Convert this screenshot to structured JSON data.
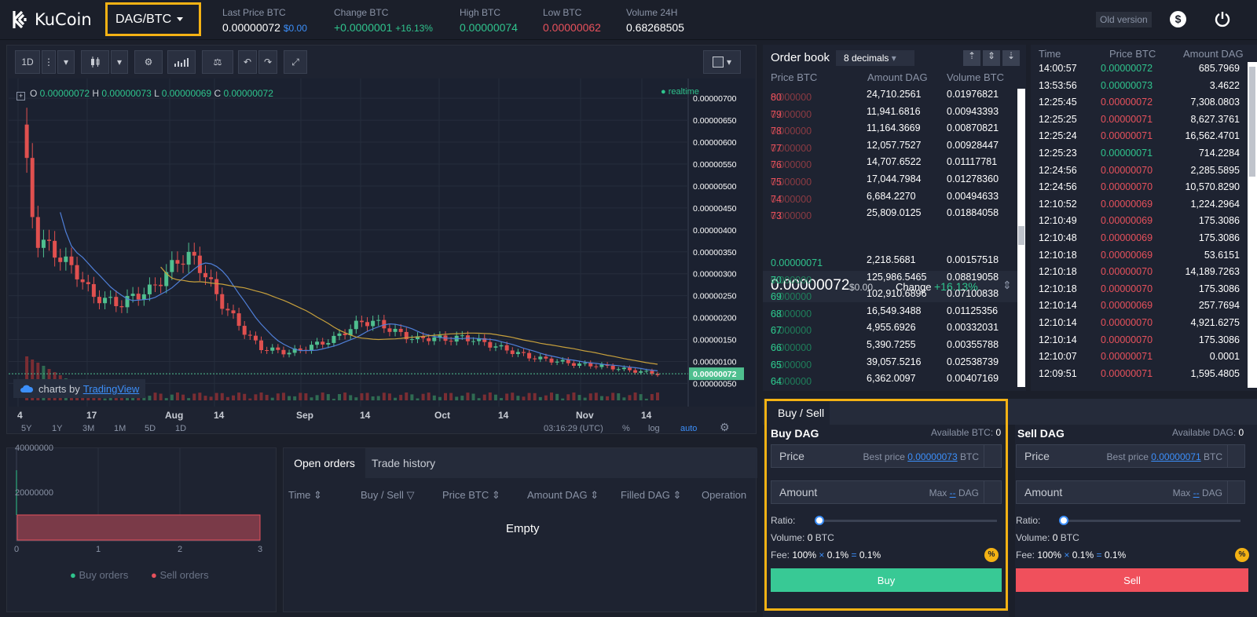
{
  "app": {
    "logo": "KuCoin",
    "pair": "DAG/BTC",
    "old_version": "Old version"
  },
  "stats": [
    {
      "label": "Last Price BTC",
      "value": "0.00000072",
      "extra": "$0.00"
    },
    {
      "label": "Change BTC",
      "value": "+0.0000001",
      "extra": "+16.13%"
    },
    {
      "label": "High BTC",
      "value": "0.00000074"
    },
    {
      "label": "Low BTC",
      "value": "0.00000062"
    },
    {
      "label": "Volume 24H",
      "value": "0.68268505"
    }
  ],
  "chart_toolbar": {
    "interval": "1D"
  },
  "chart_data": {
    "type": "candlestick",
    "ohlc_label": {
      "o": "0.00000072",
      "h": "0.00000073",
      "l": "0.00000069",
      "c": "0.00000072"
    },
    "realtime": "realtime",
    "last_price_tag": "0.00000072",
    "y_ticks": [
      "0.00000700",
      "0.00000650",
      "0.00000600",
      "0.00000550",
      "0.00000500",
      "0.00000450",
      "0.00000400",
      "0.00000350",
      "0.00000300",
      "0.00000250",
      "0.00000200",
      "0.00000150",
      "0.00000100",
      "0.00000050"
    ],
    "x_ticks": [
      "4",
      "17",
      "Aug",
      "14",
      "Sep",
      "14",
      "Oct",
      "14",
      "Nov",
      "14"
    ],
    "close_series": [
      640,
      380,
      360,
      330,
      300,
      250,
      240,
      230,
      250,
      260,
      290,
      330,
      340,
      300,
      240,
      200,
      160,
      130,
      125,
      120,
      130,
      140,
      150,
      170,
      190,
      190,
      175,
      160,
      150,
      155,
      150,
      155,
      150,
      140,
      130,
      120,
      110,
      105,
      100,
      95,
      92,
      90,
      85,
      80,
      76,
      72
    ],
    "ranges": [
      "5Y",
      "1Y",
      "3M",
      "1M",
      "5D",
      "1D"
    ],
    "time": "03:16:29 (UTC)",
    "options": [
      "%",
      "log",
      "auto"
    ],
    "watermark": {
      "prefix": "charts by",
      "brand": "TradingView"
    }
  },
  "depth_chart": {
    "type": "area",
    "y_ticks": [
      "40000000",
      "20000000"
    ],
    "x_ticks": [
      "0",
      "1",
      "2",
      "3"
    ],
    "legend": [
      "Buy orders",
      "Sell orders"
    ]
  },
  "orders": {
    "tabs": [
      "Open orders",
      "Trade history"
    ],
    "columns": [
      "Time",
      "Buy / Sell",
      "Price BTC",
      "Amount DAG",
      "Filled DAG",
      "Operation"
    ],
    "empty": "Empty"
  },
  "orderbook": {
    "title": "Order book",
    "decimals": "8 decimals",
    "columns": [
      "Price BTC",
      "Amount DAG",
      "Volume BTC"
    ],
    "asks": [
      [
        "0.000000",
        "80",
        "24,710.2561",
        "0.01976821"
      ],
      [
        "0.000000",
        "79",
        "11,941.6816",
        "0.00943393"
      ],
      [
        "0.000000",
        "78",
        "11,164.3669",
        "0.00870821"
      ],
      [
        "0.000000",
        "77",
        "12,057.7527",
        "0.00928447"
      ],
      [
        "0.000000",
        "76",
        "14,707.6522",
        "0.01117781"
      ],
      [
        "0.000000",
        "75",
        "17,044.7984",
        "0.01278360"
      ],
      [
        "0.000000",
        "74",
        "6,684.2270",
        "0.00494633"
      ],
      [
        "0.000000",
        "73",
        "25,809.0125",
        "0.01884058"
      ]
    ],
    "mid_price": "0.00000072",
    "mid_usd": "$0.00",
    "change_label": "Change",
    "change_value": "+16.13%",
    "bids": [
      [
        "0.00000071",
        "",
        "2,218.5681",
        "0.00157518"
      ],
      [
        "0.000000",
        "70",
        "125,986.5465",
        "0.08819058"
      ],
      [
        "0.000000",
        "69",
        "102,910.6896",
        "0.07100838"
      ],
      [
        "0.000000",
        "68",
        "16,549.3488",
        "0.01125356"
      ],
      [
        "0.000000",
        "67",
        "4,955.6926",
        "0.00332031"
      ],
      [
        "0.000000",
        "66",
        "5,390.7255",
        "0.00355788"
      ],
      [
        "0.000000",
        "65",
        "39,057.5216",
        "0.02538739"
      ],
      [
        "0.000000",
        "64",
        "6,362.0097",
        "0.00407169"
      ]
    ]
  },
  "trades": {
    "columns": [
      "Time",
      "Price BTC",
      "Amount DAG"
    ],
    "rows": [
      [
        "14:00:57",
        "0.00000072",
        "685.7969",
        "up"
      ],
      [
        "13:53:56",
        "0.00000073",
        "3.4622",
        "up"
      ],
      [
        "12:25:45",
        "0.00000072",
        "7,308.0803",
        "down"
      ],
      [
        "12:25:25",
        "0.00000071",
        "8,627.3761",
        "down"
      ],
      [
        "12:25:24",
        "0.00000071",
        "16,562.4701",
        "down"
      ],
      [
        "12:25:23",
        "0.00000071",
        "714.2284",
        "up"
      ],
      [
        "12:24:56",
        "0.00000070",
        "2,285.5895",
        "down"
      ],
      [
        "12:24:56",
        "0.00000070",
        "10,570.8290",
        "down"
      ],
      [
        "12:10:52",
        "0.00000069",
        "1,224.2964",
        "down"
      ],
      [
        "12:10:49",
        "0.00000069",
        "175.3086",
        "down"
      ],
      [
        "12:10:48",
        "0.00000069",
        "175.3086",
        "down"
      ],
      [
        "12:10:18",
        "0.00000069",
        "53.6151",
        "down"
      ],
      [
        "12:10:18",
        "0.00000070",
        "14,189.7263",
        "down"
      ],
      [
        "12:10:18",
        "0.00000070",
        "175.3086",
        "down"
      ],
      [
        "12:10:14",
        "0.00000069",
        "257.7694",
        "down"
      ],
      [
        "12:10:14",
        "0.00000070",
        "4,921.6275",
        "down"
      ],
      [
        "12:10:14",
        "0.00000070",
        "175.3086",
        "down"
      ],
      [
        "12:10:07",
        "0.00000071",
        "0.0001",
        "down"
      ],
      [
        "12:09:51",
        "0.00000071",
        "1,595.4805",
        "down"
      ]
    ]
  },
  "buy_sell": {
    "tab": "Buy / Sell",
    "buy": {
      "title": "Buy DAG",
      "avail": "Available BTC:",
      "avail_val": "0",
      "price": "Price",
      "best": "Best price",
      "best_val": "0.00000073",
      "best_unit": "BTC",
      "amount": "Amount",
      "max": "Max",
      "max_val": "--",
      "max_unit": "DAG",
      "ratio": "Ratio:",
      "volume": "Volume:",
      "volume_val": "0",
      "volume_unit": "BTC",
      "fee": "Fee:",
      "fee_a": "100%",
      "fee_b": "0.1%",
      "fee_c": "0.1%",
      "button": "Buy"
    },
    "sell": {
      "title": "Sell DAG",
      "avail": "Available DAG:",
      "avail_val": "0",
      "price": "Price",
      "best": "Best price",
      "best_val": "0.00000071",
      "best_unit": "BTC",
      "amount": "Amount",
      "max": "Max",
      "max_val": "--",
      "max_unit": "DAG",
      "ratio": "Ratio:",
      "volume": "Volume:",
      "volume_val": "0",
      "volume_unit": "BTC",
      "fee": "Fee:",
      "fee_a": "100%",
      "fee_b": "0.1%",
      "fee_c": "0.1%",
      "button": "Sell"
    }
  },
  "colors": {
    "up": "#2fc48d",
    "down": "#e8515c",
    "highlight": "#f4b214",
    "accent": "#3c8ffa"
  }
}
